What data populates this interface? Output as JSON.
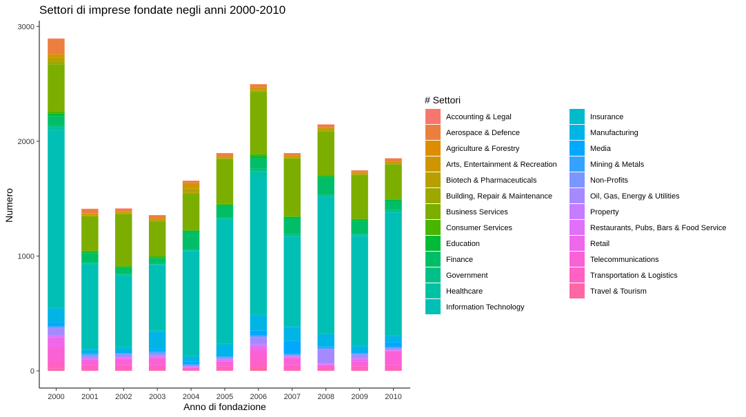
{
  "chart_data": {
    "type": "bar",
    "stacked": true,
    "title": "Settori di imprese fondate negli anni 2000-2010",
    "xlabel": "Anno di fondazione",
    "ylabel": "Numero",
    "ylim": [
      -150,
      3050
    ],
    "yticks": [
      0,
      1000,
      2000,
      3000
    ],
    "legend_title": "# Settori",
    "legend_position": "right",
    "categories": [
      "2000",
      "2001",
      "2002",
      "2003",
      "2004",
      "2005",
      "2006",
      "2007",
      "2008",
      "2009",
      "2010"
    ],
    "series": [
      {
        "name": "Accounting & Legal",
        "color": "#F8766D",
        "values": [
          5,
          2,
          2,
          2,
          2,
          2,
          2,
          2,
          2,
          2,
          2
        ]
      },
      {
        "name": "Aerospace & Defence",
        "color": "#EC7F3E",
        "values": [
          130,
          40,
          25,
          25,
          20,
          25,
          25,
          20,
          25,
          15,
          25
        ]
      },
      {
        "name": "Agriculture & Forestry",
        "color": "#DE8C00",
        "values": [
          10,
          5,
          5,
          5,
          5,
          5,
          5,
          5,
          5,
          5,
          5
        ]
      },
      {
        "name": "Arts, Entertainment & Recreation",
        "color": "#CD9600",
        "values": [
          20,
          10,
          8,
          10,
          40,
          10,
          20,
          10,
          10,
          10,
          10
        ]
      },
      {
        "name": "Biotech & Pharmaceuticals",
        "color": "#B79F00",
        "values": [
          40,
          5,
          5,
          10,
          40,
          5,
          5,
          5,
          10,
          5,
          5
        ]
      },
      {
        "name": "Building, Repair & Maintenance",
        "color": "#9DA700",
        "values": [
          20,
          5,
          5,
          5,
          10,
          5,
          10,
          5,
          10,
          5,
          5
        ]
      },
      {
        "name": "Business Services",
        "color": "#7CAE00",
        "values": [
          410,
          300,
          450,
          300,
          310,
          390,
          540,
          500,
          380,
          380,
          300
        ]
      },
      {
        "name": "Consumer Services",
        "color": "#49B500",
        "values": [
          20,
          10,
          10,
          10,
          10,
          10,
          20,
          10,
          10,
          10,
          10
        ]
      },
      {
        "name": "Education",
        "color": "#00BA38",
        "values": [
          20,
          10,
          10,
          10,
          10,
          10,
          20,
          10,
          10,
          10,
          10
        ]
      },
      {
        "name": "Finance",
        "color": "#00BE67",
        "values": [
          80,
          80,
          50,
          40,
          150,
          100,
          90,
          140,
          150,
          110,
          80
        ]
      },
      {
        "name": "Government",
        "color": "#00C088",
        "values": [
          20,
          10,
          10,
          10,
          10,
          10,
          20,
          10,
          10,
          10,
          10
        ]
      },
      {
        "name": "Healthcare",
        "color": "#00C1A3",
        "values": [
          30,
          10,
          10,
          10,
          10,
          10,
          50,
          10,
          10,
          10,
          10
        ]
      },
      {
        "name": "Information Technology",
        "color": "#00BFB5",
        "values": [
          1540,
          730,
          620,
          570,
          910,
          1080,
          1200,
          780,
          1190,
          950,
          1070
        ]
      },
      {
        "name": "Insurance",
        "color": "#00BBCC",
        "values": [
          10,
          10,
          10,
          10,
          10,
          10,
          10,
          10,
          10,
          10,
          10
        ]
      },
      {
        "name": "Manufacturing",
        "color": "#00B4E5",
        "values": [
          120,
          30,
          30,
          150,
          40,
          90,
          130,
          120,
          100,
          50,
          50
        ]
      },
      {
        "name": "Media",
        "color": "#00A9FF",
        "values": [
          30,
          10,
          10,
          20,
          20,
          10,
          40,
          110,
          10,
          10,
          40
        ]
      },
      {
        "name": "Mining & Metals",
        "color": "#35A2FF",
        "values": [
          10,
          5,
          5,
          10,
          10,
          5,
          10,
          10,
          10,
          5,
          10
        ]
      },
      {
        "name": "Non-Profits",
        "color": "#7B97FF",
        "values": [
          10,
          10,
          10,
          20,
          5,
          10,
          10,
          5,
          10,
          10,
          5
        ]
      },
      {
        "name": "Oil, Gas, Energy & Utilities",
        "color": "#A58AFF",
        "values": [
          60,
          20,
          20,
          10,
          5,
          10,
          60,
          5,
          120,
          30,
          10
        ]
      },
      {
        "name": "Property",
        "color": "#C77CFF",
        "values": [
          10,
          5,
          5,
          5,
          5,
          5,
          10,
          5,
          5,
          5,
          5
        ]
      },
      {
        "name": "Restaurants, Pubs, Bars & Food Service",
        "color": "#DF70F8",
        "values": [
          10,
          5,
          5,
          5,
          5,
          5,
          10,
          5,
          5,
          5,
          5
        ]
      },
      {
        "name": "Retail",
        "color": "#EF67EB",
        "values": [
          80,
          10,
          10,
          10,
          5,
          10,
          30,
          10,
          5,
          20,
          5
        ]
      },
      {
        "name": "Telecommunications",
        "color": "#FB61D7",
        "values": [
          120,
          40,
          50,
          60,
          10,
          40,
          90,
          60,
          20,
          40,
          120
        ]
      },
      {
        "name": "Transportation & Logistics",
        "color": "#FF61C3",
        "values": [
          70,
          40,
          40,
          40,
          10,
          30,
          60,
          40,
          20,
          30,
          40
        ]
      },
      {
        "name": "Travel & Tourism",
        "color": "#FF67A4",
        "values": [
          20,
          10,
          10,
          10,
          5,
          10,
          30,
          10,
          10,
          10,
          10
        ]
      }
    ]
  }
}
